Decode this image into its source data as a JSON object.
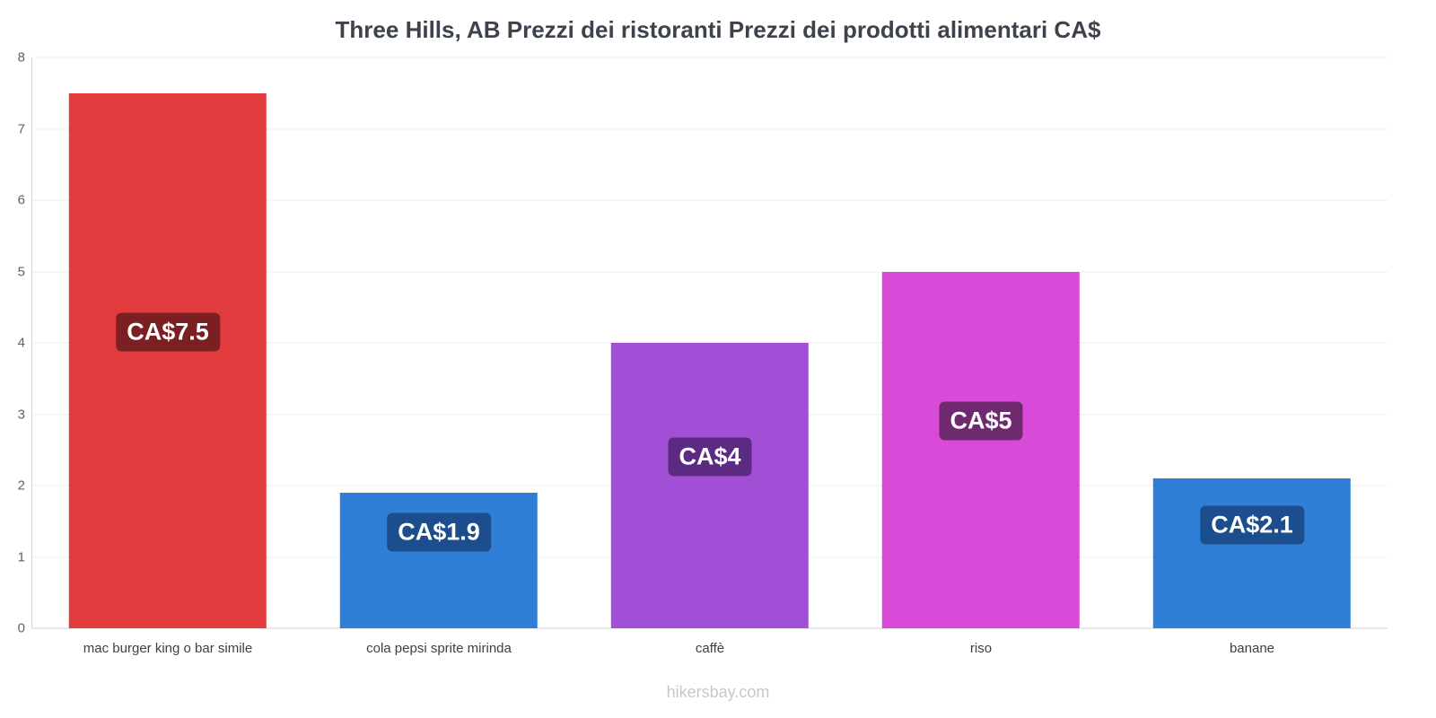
{
  "chart_data": {
    "type": "bar",
    "title": "Three Hills, AB Prezzi dei ristoranti Prezzi dei prodotti alimentari CA$",
    "categories": [
      "mac burger king o bar simile",
      "cola pepsi sprite mirinda",
      "caffè",
      "riso",
      "banane"
    ],
    "values": [
      7.5,
      1.9,
      4,
      5,
      2.1
    ],
    "value_labels": [
      "CA$7.5",
      "CA$1.9",
      "CA$4",
      "CA$5",
      "CA$2.1"
    ],
    "bar_colors": [
      "#e23b3e",
      "#2f7fd6",
      "#a24fd8",
      "#d94ad9",
      "#2f7fd6"
    ],
    "badge_colors": [
      "#7c1f22",
      "#1c4d8c",
      "#5a2b80",
      "#6f2a6f",
      "#1c4d8c"
    ],
    "ylabel": "",
    "xlabel": "",
    "ylim": [
      0,
      8
    ],
    "yticks": [
      0,
      1,
      2,
      3,
      4,
      5,
      6,
      7,
      8
    ],
    "grid": true,
    "legend": "none",
    "footer": "hikersbay.com"
  }
}
